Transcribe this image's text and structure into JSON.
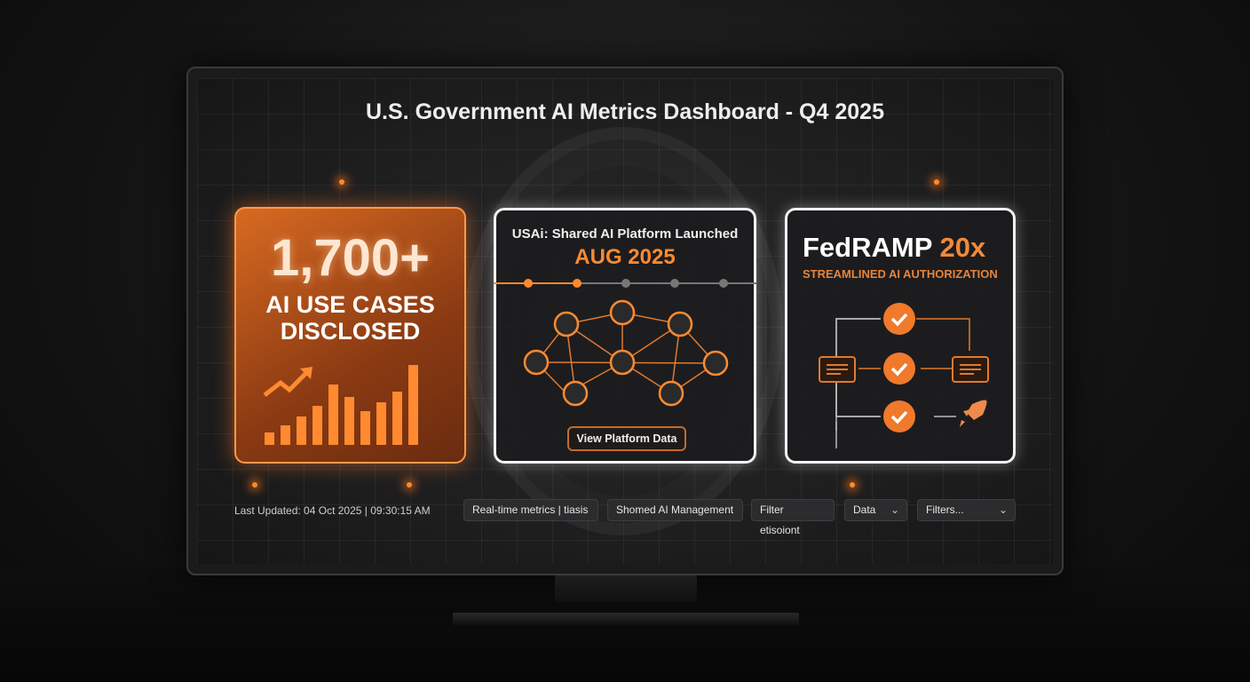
{
  "dashboard": {
    "title": "U.S. Government AI Metrics Dashboard - Q4 2025"
  },
  "card_use_cases": {
    "value": "1,700+",
    "label_line1": "AI USE CASES",
    "label_line2": "DISCLOSED",
    "icon": "trending-up-bar-chart-icon"
  },
  "card_usai": {
    "heading": "USAi: Shared AI Platform Launched",
    "date": "AUG 2025",
    "timeline_active_steps": 2,
    "timeline_total_steps": 5,
    "button": "View Platform Data",
    "icon": "agency-network-icon"
  },
  "card_fedramp": {
    "title": "FedRAMP",
    "title_accent": "20x",
    "subtitle": "STREAMLINED AI AUTHORIZATION",
    "icons": [
      "check-circle-icon",
      "document-icon",
      "rocket-icon"
    ]
  },
  "footer": {
    "last_updated": "Last Updated: 04 Oct 2025 | 09:30:15 AM",
    "buttons": [
      "Real-time metrics | tiasis",
      "Shomed AI Management",
      "Filter etisoiont"
    ],
    "selects": [
      {
        "value": "Data"
      },
      {
        "value": "Filters..."
      }
    ]
  },
  "colors": {
    "accent": "#f08a3a",
    "background": "#161617"
  }
}
